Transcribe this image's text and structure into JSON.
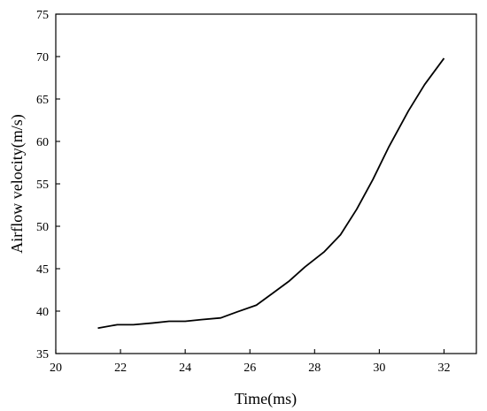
{
  "chart_data": {
    "type": "line",
    "title": "",
    "xlabel": "Time(ms)",
    "ylabel": "Airflow velocity(m/s)",
    "xlim": [
      20,
      33
    ],
    "ylim": [
      35,
      75
    ],
    "xticks": [
      20,
      22,
      24,
      26,
      28,
      30,
      32
    ],
    "yticks": [
      35,
      40,
      45,
      50,
      55,
      60,
      65,
      70,
      75
    ],
    "grid": false,
    "legend": "none",
    "series": [
      {
        "color": "#000000",
        "x": [
          21.3,
          21.9,
          22.4,
          23.0,
          23.5,
          24.0,
          24.5,
          25.1,
          25.6,
          26.2,
          26.7,
          27.2,
          27.7,
          28.3,
          28.8,
          29.3,
          29.8,
          30.3,
          30.9,
          31.4,
          32.0
        ],
        "y": [
          38.0,
          38.4,
          38.4,
          38.6,
          38.8,
          38.8,
          39.0,
          39.2,
          39.9,
          40.7,
          42.1,
          43.5,
          45.2,
          47.0,
          49.0,
          52.0,
          55.5,
          59.4,
          63.6,
          66.7,
          69.8
        ]
      }
    ]
  }
}
